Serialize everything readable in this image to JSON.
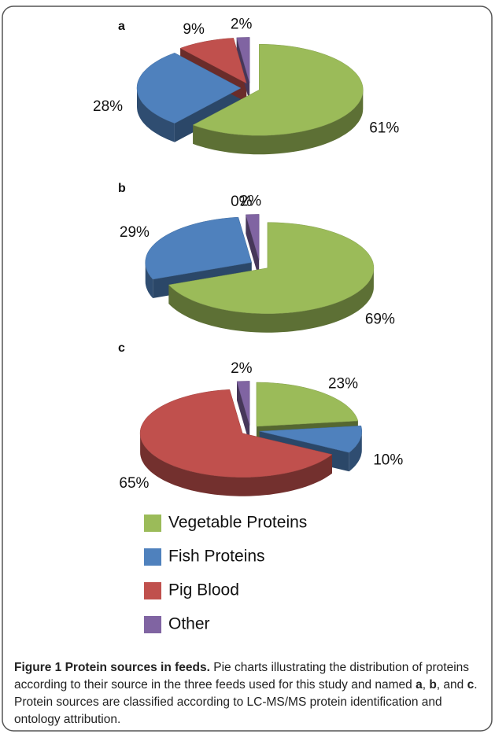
{
  "chart_data": [
    {
      "type": "pie",
      "panel": "a",
      "values": [
        61,
        28,
        9,
        2
      ],
      "value_labels": [
        "61%",
        "28%",
        "9%",
        "2%"
      ]
    },
    {
      "type": "pie",
      "panel": "b",
      "values": [
        69,
        29,
        0,
        2
      ],
      "value_labels": [
        "69%",
        "29%",
        "0%",
        "2%"
      ]
    },
    {
      "type": "pie",
      "panel": "c",
      "values": [
        23,
        10,
        65,
        2
      ],
      "value_labels": [
        "23%",
        "10%",
        "65%",
        "2%"
      ]
    }
  ],
  "legend": {
    "names": [
      "Vegetable Proteins",
      "Fish Proteins",
      "Pig Blood",
      "Other"
    ],
    "colors": [
      "#9bbb59",
      "#4f81bd",
      "#c0504d",
      "#8064a2"
    ]
  },
  "caption": [
    {
      "text": "Figure 1 Protein sources in feeds.",
      "bold": true
    },
    {
      "text": " Pie charts illustrating the distribution of proteins according to their source in the three feeds used for this study and named ",
      "bold": false
    },
    {
      "text": "a",
      "bold": true
    },
    {
      "text": ", ",
      "bold": false
    },
    {
      "text": "b",
      "bold": true
    },
    {
      "text": ", and ",
      "bold": false
    },
    {
      "text": "c",
      "bold": true
    },
    {
      "text": ". Protein sources are classified according to LC-MS/MS protein identification and ontology attribution.",
      "bold": false
    }
  ]
}
